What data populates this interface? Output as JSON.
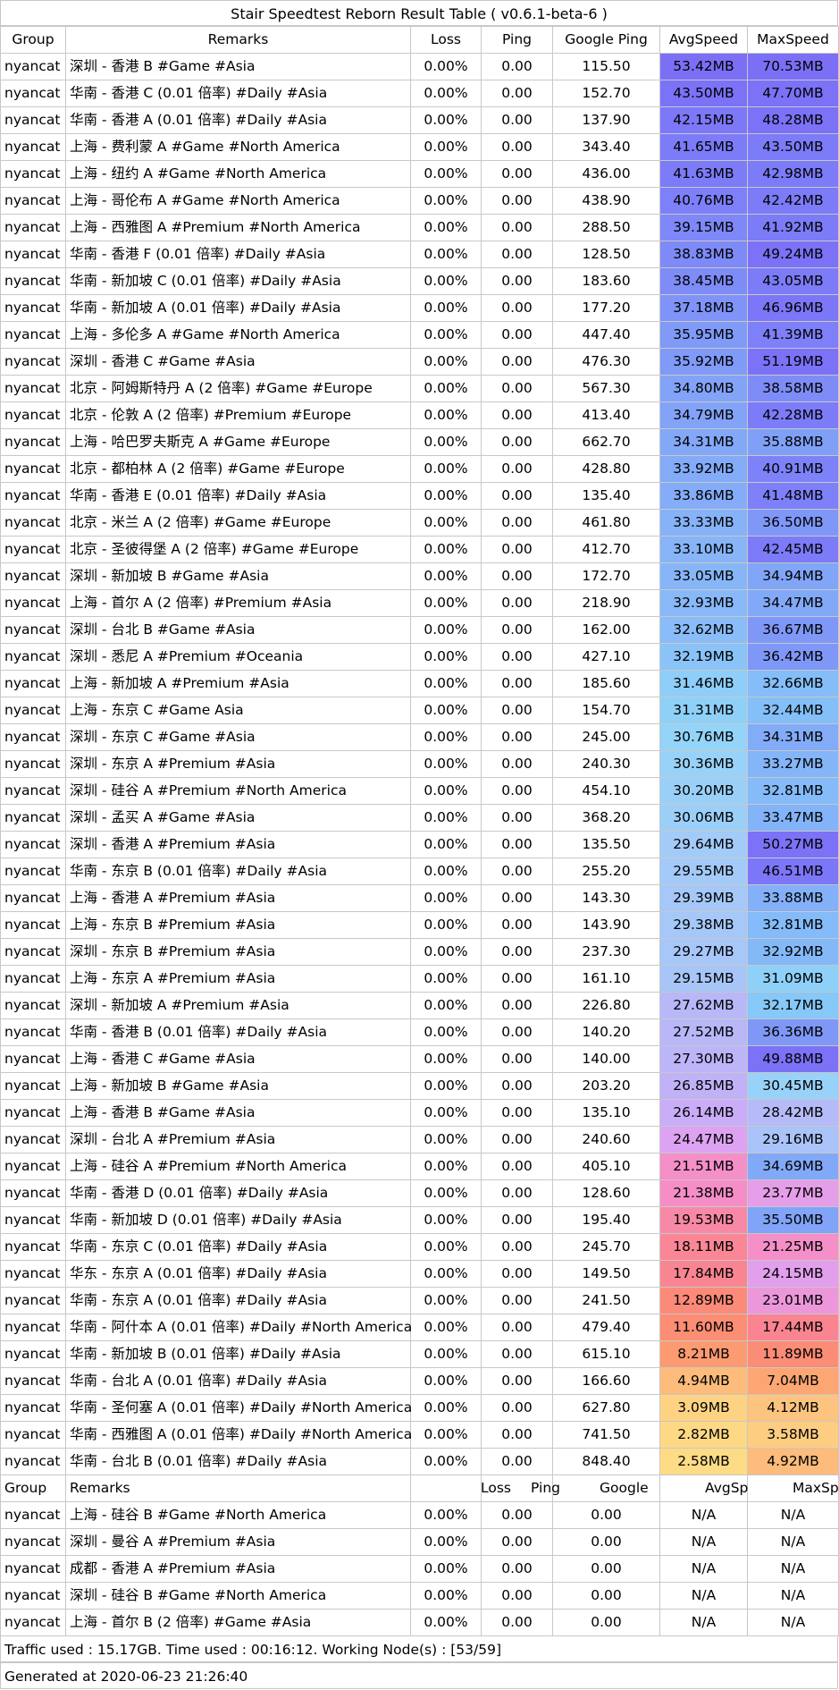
{
  "title": "Stair Speedtest Reborn Result Table ( v0.6.1-beta-6 )",
  "headers": [
    "Group",
    "Remarks",
    "Loss",
    "Ping",
    "Google Ping",
    "AvgSpeed",
    "MaxSpeed"
  ],
  "rows": [
    [
      "nyancat",
      "深圳 - 香港 B #Game #Asia",
      "0.00%",
      "0.00",
      "115.50",
      "53.42MB",
      "70.53MB",
      "#7b6ff6",
      "#7b6ff6"
    ],
    [
      "nyancat",
      "华南 - 香港 C (0.01 倍率) #Daily #Asia",
      "0.00%",
      "0.00",
      "152.70",
      "43.50MB",
      "47.70MB",
      "#7b72f7",
      "#7b72f7"
    ],
    [
      "nyancat",
      "华南 - 香港 A (0.01 倍率) #Daily #Asia",
      "0.00%",
      "0.00",
      "137.90",
      "42.15MB",
      "48.28MB",
      "#7c78f8",
      "#7b72f7"
    ],
    [
      "nyancat",
      "上海 - 费利蒙 A #Game #North America",
      "0.00%",
      "0.00",
      "343.40",
      "41.65MB",
      "43.50MB",
      "#7c7bf8",
      "#7c7bf8"
    ],
    [
      "nyancat",
      "上海 - 纽约 A #Game #North America",
      "0.00%",
      "0.00",
      "436.00",
      "41.63MB",
      "42.98MB",
      "#7c7bf8",
      "#7c7bf8"
    ],
    [
      "nyancat",
      "上海 - 哥伦布 A #Game #North America",
      "0.00%",
      "0.00",
      "438.90",
      "40.76MB",
      "42.42MB",
      "#7d80f8",
      "#7c7bf8"
    ],
    [
      "nyancat",
      "上海 - 西雅图 A #Premium #North America",
      "0.00%",
      "0.00",
      "288.50",
      "39.15MB",
      "41.92MB",
      "#7e88f8",
      "#7c7bf8"
    ],
    [
      "nyancat",
      "华南 - 香港 F (0.01 倍率) #Daily #Asia",
      "0.00%",
      "0.00",
      "128.50",
      "38.83MB",
      "49.24MB",
      "#7e8af8",
      "#7b72f7"
    ],
    [
      "nyancat",
      "华南 - 新加坡 C (0.01 倍率) #Daily #Asia",
      "0.00%",
      "0.00",
      "183.60",
      "38.45MB",
      "43.05MB",
      "#7e8cf8",
      "#7c7bf8"
    ],
    [
      "nyancat",
      "华南 - 新加坡 A (0.01 倍率) #Daily #Asia",
      "0.00%",
      "0.00",
      "177.20",
      "37.18MB",
      "46.96MB",
      "#7f93f8",
      "#7c76f8"
    ],
    [
      "nyancat",
      "上海 - 多伦多 A #Game #North America",
      "0.00%",
      "0.00",
      "447.40",
      "35.95MB",
      "41.39MB",
      "#809af8",
      "#7d80f8"
    ],
    [
      "nyancat",
      "深圳 - 香港 C #Game #Asia",
      "0.00%",
      "0.00",
      "476.30",
      "35.92MB",
      "51.19MB",
      "#809af8",
      "#7b72f7"
    ],
    [
      "nyancat",
      "北京 - 阿姆斯特丹 A (2 倍率) #Game #Europe",
      "0.00%",
      "0.00",
      "567.30",
      "34.80MB",
      "38.58MB",
      "#82a3f8",
      "#7e8cf8"
    ],
    [
      "nyancat",
      "北京 - 伦敦 A (2 倍率) #Premium #Europe",
      "0.00%",
      "0.00",
      "413.40",
      "34.79MB",
      "42.28MB",
      "#82a3f8",
      "#7c7bf8"
    ],
    [
      "nyancat",
      "上海 - 哈巴罗夫斯克 A #Game #Europe",
      "0.00%",
      "0.00",
      "662.70",
      "34.31MB",
      "35.88MB",
      "#83a8f8",
      "#80a0f8"
    ],
    [
      "nyancat",
      "北京 - 都柏林 A (2 倍率) #Game #Europe",
      "0.00%",
      "0.00",
      "428.80",
      "33.92MB",
      "40.91MB",
      "#84abf8",
      "#7d82f8"
    ],
    [
      "nyancat",
      "华南 - 香港 E (0.01 倍率) #Daily #Asia",
      "0.00%",
      "0.00",
      "135.40",
      "33.86MB",
      "41.48MB",
      "#84acf8",
      "#7d80f8"
    ],
    [
      "nyancat",
      "北京 - 米兰 A (2 倍率) #Game #Europe",
      "0.00%",
      "0.00",
      "461.80",
      "33.33MB",
      "36.50MB",
      "#86b2f8",
      "#7f98f8"
    ],
    [
      "nyancat",
      "北京 - 圣彼得堡 A (2 倍率) #Game #Europe",
      "0.00%",
      "0.00",
      "412.70",
      "33.10MB",
      "42.45MB",
      "#87b5f8",
      "#7c7bf8"
    ],
    [
      "nyancat",
      "深圳 - 新加坡 B #Game #Asia",
      "0.00%",
      "0.00",
      "172.70",
      "33.05MB",
      "34.94MB",
      "#87b6f8",
      "#81a6f8"
    ],
    [
      "nyancat",
      "上海 - 首尔 A (2 倍率) #Premium #Asia",
      "0.00%",
      "0.00",
      "218.90",
      "32.93MB",
      "34.47MB",
      "#88b8f8",
      "#82a9f8"
    ],
    [
      "nyancat",
      "深圳 - 台北 B #Game #Asia",
      "0.00%",
      "0.00",
      "162.00",
      "32.62MB",
      "36.67MB",
      "#89bcf8",
      "#7f98f8"
    ],
    [
      "nyancat",
      "深圳 - 悉尼 A #Premium #Oceania",
      "0.00%",
      "0.00",
      "427.10",
      "32.19MB",
      "36.42MB",
      "#8ac3f8",
      "#7f98f8"
    ],
    [
      "nyancat",
      "上海 - 新加坡 A #Premium #Asia",
      "0.00%",
      "0.00",
      "185.60",
      "31.46MB",
      "32.66MB",
      "#8ecef8",
      "#84bdf8"
    ],
    [
      "nyancat",
      "上海 - 东京 C #Game Asia",
      "0.00%",
      "0.00",
      "154.70",
      "31.31MB",
      "32.44MB",
      "#8fd0f8",
      "#84bff8"
    ],
    [
      "nyancat",
      "深圳 - 东京 C #Game #Asia",
      "0.00%",
      "0.00",
      "245.00",
      "30.76MB",
      "34.31MB",
      "#93d4f8",
      "#82abf8"
    ],
    [
      "nyancat",
      "深圳 - 东京 A #Premium #Asia",
      "0.00%",
      "0.00",
      "240.30",
      "30.36MB",
      "33.27MB",
      "#98d2f8",
      "#83b5f8"
    ],
    [
      "nyancat",
      "深圳 - 硅谷 A #Premium #North America",
      "0.00%",
      "0.00",
      "454.10",
      "30.20MB",
      "32.81MB",
      "#9ad0f8",
      "#84bbf8"
    ],
    [
      "nyancat",
      "深圳 - 孟买 A #Game #Asia",
      "0.00%",
      "0.00",
      "368.20",
      "30.06MB",
      "33.47MB",
      "#9ccff8",
      "#83b3f8"
    ],
    [
      "nyancat",
      "深圳 - 香港 A #Premium #Asia",
      "0.00%",
      "0.00",
      "135.50",
      "29.64MB",
      "50.27MB",
      "#a2cbf8",
      "#7b72f7"
    ],
    [
      "nyancat",
      "华南 - 东京 B (0.01 倍率) #Daily #Asia",
      "0.00%",
      "0.00",
      "255.20",
      "29.55MB",
      "46.51MB",
      "#a3caf8",
      "#7c76f8"
    ],
    [
      "nyancat",
      "上海 - 香港 A #Premium #Asia",
      "0.00%",
      "0.00",
      "143.30",
      "29.39MB",
      "33.88MB",
      "#a5c8f8",
      "#83b0f8"
    ],
    [
      "nyancat",
      "上海 - 东京 B #Premium #Asia",
      "0.00%",
      "0.00",
      "143.90",
      "29.38MB",
      "32.81MB",
      "#a5c8f8",
      "#84bbf8"
    ],
    [
      "nyancat",
      "深圳 - 东京 B #Premium #Asia",
      "0.00%",
      "0.00",
      "237.30",
      "29.27MB",
      "32.92MB",
      "#a7c7f8",
      "#84b9f8"
    ],
    [
      "nyancat",
      "上海 - 东京 A #Premium #Asia",
      "0.00%",
      "0.00",
      "161.10",
      "29.15MB",
      "31.09MB",
      "#a8c5f8",
      "#8ed0f8"
    ],
    [
      "nyancat",
      "深圳 - 新加坡 A #Premium #Asia",
      "0.00%",
      "0.00",
      "226.80",
      "27.62MB",
      "32.17MB",
      "#b8b8f8",
      "#86c8f8"
    ],
    [
      "nyancat",
      "华南 - 香港 B (0.01 倍率) #Daily #Asia",
      "0.00%",
      "0.00",
      "140.20",
      "27.52MB",
      "36.36MB",
      "#b9b7f8",
      "#7f98f8"
    ],
    [
      "nyancat",
      "上海 - 香港 C #Game #Asia",
      "0.00%",
      "0.00",
      "140.00",
      "27.30MB",
      "49.88MB",
      "#bcb5f8",
      "#7b72f7"
    ],
    [
      "nyancat",
      "上海 - 新加坡 B #Game #Asia",
      "0.00%",
      "0.00",
      "203.20",
      "26.85MB",
      "30.45MB",
      "#c1b2f8",
      "#99d2f8"
    ],
    [
      "nyancat",
      "上海 - 香港 B #Game #Asia",
      "0.00%",
      "0.00",
      "135.10",
      "26.14MB",
      "28.42MB",
      "#c9adf8",
      "#b4bbf8"
    ],
    [
      "nyancat",
      "深圳 - 台北 A #Premium #Asia",
      "0.00%",
      "0.00",
      "240.60",
      "24.47MB",
      "29.16MB",
      "#dda3f2",
      "#aac3f8"
    ],
    [
      "nyancat",
      "上海 - 硅谷 A #Premium #North America",
      "0.00%",
      "0.00",
      "405.10",
      "21.51MB",
      "34.69MB",
      "#f48fc8",
      "#82a9f8"
    ],
    [
      "nyancat",
      "华南 - 香港 D (0.01 倍率) #Daily #Asia",
      "0.00%",
      "0.00",
      "128.60",
      "21.38MB",
      "23.77MB",
      "#f58ec6",
      "#e59ee8"
    ],
    [
      "nyancat",
      "华南 - 新加坡 D (0.01 倍率) #Daily #Asia",
      "0.00%",
      "0.00",
      "195.40",
      "19.53MB",
      "35.50MB",
      "#f889a6",
      "#81a3f8"
    ],
    [
      "nyancat",
      "华南 - 东京 C (0.01 倍率) #Daily #Asia",
      "0.00%",
      "0.00",
      "245.70",
      "18.11MB",
      "21.25MB",
      "#fa8696",
      "#f48fc8"
    ],
    [
      "nyancat",
      "华东 - 东京 A (0.01 倍率) #Daily #Asia",
      "0.00%",
      "0.00",
      "149.50",
      "17.84MB",
      "24.15MB",
      "#fa8592",
      "#e19fec"
    ],
    [
      "nyancat",
      "华南 - 东京 A (0.01 倍率) #Daily #Asia",
      "0.00%",
      "0.00",
      "241.50",
      "12.89MB",
      "23.01MB",
      "#fb8a78",
      "#ec97dc"
    ],
    [
      "nyancat",
      "华南 - 阿什本 A (0.01 倍率) #Daily #North America",
      "0.00%",
      "0.00",
      "479.40",
      "11.60MB",
      "17.44MB",
      "#fb8e74",
      "#fa8590"
    ],
    [
      "nyancat",
      "华南 - 新加坡 B (0.01 倍率) #Daily #Asia",
      "0.00%",
      "0.00",
      "615.10",
      "8.21MB",
      "11.89MB",
      "#fc9a72",
      "#fb8c76"
    ],
    [
      "nyancat",
      "华南 - 台北 A (0.01 倍率) #Daily #Asia",
      "0.00%",
      "0.00",
      "166.60",
      "4.94MB",
      "7.04MB",
      "#fdbb7c",
      "#fca674"
    ],
    [
      "nyancat",
      "华南 - 圣何塞 A (0.01 倍率) #Daily #North America",
      "0.00%",
      "0.00",
      "627.80",
      "3.09MB",
      "4.12MB",
      "#fdd383",
      "#fdc47f"
    ],
    [
      "nyancat",
      "华南 - 西雅图 A (0.01 倍率) #Daily #North America",
      "0.00%",
      "0.00",
      "741.50",
      "2.82MB",
      "3.58MB",
      "#fdd885",
      "#fdcd81"
    ],
    [
      "nyancat",
      "华南 - 台北 B (0.01 倍率) #Daily #Asia",
      "0.00%",
      "0.00",
      "848.40",
      "2.58MB",
      "4.92MB",
      "#fedc86",
      "#fdbb7c"
    ]
  ],
  "headers2": [
    "Group",
    "Remarks",
    "Loss",
    "Ping",
    "Google",
    "AvgSp",
    "MaxSp"
  ],
  "rows2": [
    [
      "nyancat",
      "上海 - 硅谷 B #Game #North America",
      "0.00%",
      "0.00",
      "0.00",
      "N/A",
      "N/A"
    ],
    [
      "nyancat",
      "深圳 - 曼谷 A #Premium #Asia",
      "0.00%",
      "0.00",
      "0.00",
      "N/A",
      "N/A"
    ],
    [
      "nyancat",
      "成都 - 香港 A #Premium #Asia",
      "0.00%",
      "0.00",
      "0.00",
      "N/A",
      "N/A"
    ],
    [
      "nyancat",
      "深圳 - 硅谷 B #Game #North America",
      "0.00%",
      "0.00",
      "0.00",
      "N/A",
      "N/A"
    ],
    [
      "nyancat",
      "上海 - 首尔 B (2 倍率) #Game #Asia",
      "0.00%",
      "0.00",
      "0.00",
      "N/A",
      "N/A"
    ]
  ],
  "footer": {
    "traffic": "Traffic used : 15.17GB. Time used : 00:16:12. Working Node(s) : [53/59]",
    "generated": "Generated at 2020-06-23 21:26:40"
  }
}
